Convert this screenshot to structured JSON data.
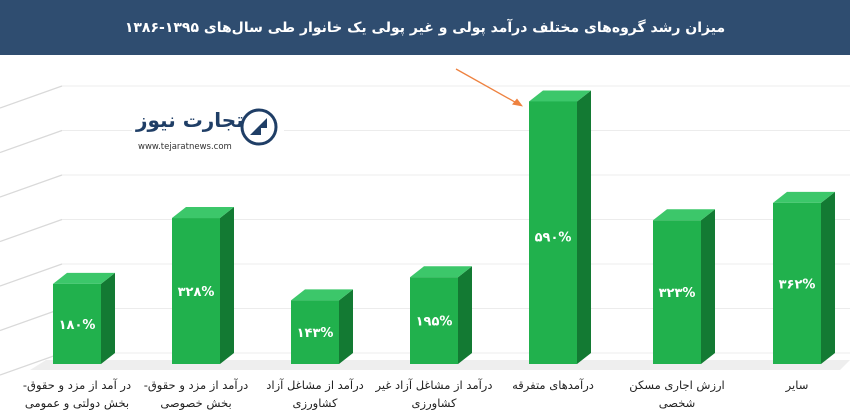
{
  "title": "میزان رشد گروه‌های مختلف درآمد پولی و غیر پولی یک خانوار طی سال‌های ۱۳۹۵-۱۳۸۶",
  "logo": {
    "name": "تجارت نیوز",
    "url": "www.tejaratnews.com"
  },
  "colors": {
    "title_bar": "#2f4d70",
    "bar_front": "#21b14d",
    "bar_side": "#137a33",
    "bar_top": "#3cc76a",
    "arrow": "#ee8240"
  },
  "chart_data": {
    "type": "bar",
    "title": "میزان رشد گروه‌های مختلف درآمد پولی و غیر پولی یک خانوار طی سال‌های ۱۳۹۵-۱۳۸۶",
    "categories": [
      [
        "در آمد از مزد و حقوق-",
        "بخش دولتی و عمومی"
      ],
      [
        "درآمد از مزد و حقوق-",
        "بخش خصوصی"
      ],
      [
        "درآمد از مشاغل آزاد",
        "کشاورزی"
      ],
      [
        "درآمد از مشاغل آزاد غیر",
        "کشاورزی"
      ],
      [
        "درآمدهای متفرقه"
      ],
      [
        "ارزش اجاری مسکن",
        "شخصی"
      ],
      [
        "سایر"
      ]
    ],
    "values": [
      180,
      328,
      143,
      195,
      590,
      323,
      362
    ],
    "data_labels": [
      "۱۸۰%",
      "۳۲۸%",
      "۱۴۳%",
      "۱۹۵%",
      "۵۹۰%",
      "۳۲۳%",
      "۳۶۲%"
    ],
    "highlight_index": 4,
    "ylim": [
      0,
      600
    ],
    "grid": true,
    "legend": "none"
  }
}
